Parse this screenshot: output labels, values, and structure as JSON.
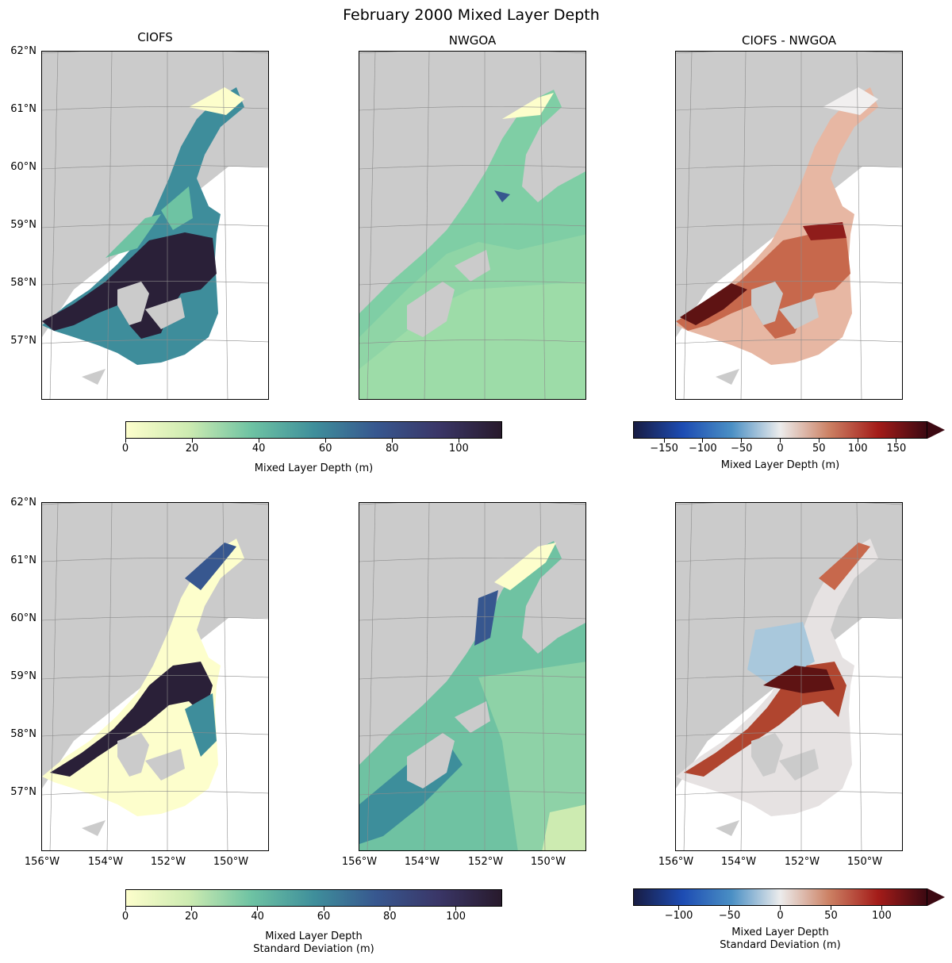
{
  "figure": {
    "title": "February 2000 Mixed Layer Depth",
    "columns": [
      "CIOFS",
      "NWGOA",
      "CIOFS - NWGOA"
    ]
  },
  "axes": {
    "lat_labels": [
      "62°N",
      "61°N",
      "60°N",
      "59°N",
      "58°N",
      "57°N"
    ],
    "lon_labels": [
      "156°W",
      "154°W",
      "152°W",
      "150°W"
    ]
  },
  "colorbars": {
    "top_seq": {
      "label": "Mixed Layer Depth (m)",
      "ticks": [
        "0",
        "20",
        "40",
        "60",
        "80",
        "100"
      ],
      "range": [
        0,
        113
      ],
      "colormap": "deep",
      "colors": [
        "#fdfecc",
        "#cdebb1",
        "#6ec3a3",
        "#3f8f9b",
        "#37578f",
        "#3a3667",
        "#281a2c"
      ]
    },
    "top_div": {
      "label": "Mixed Layer Depth (m)",
      "ticks": [
        "−150",
        "−100",
        "−50",
        "0",
        "50",
        "100",
        "150"
      ],
      "range": [
        -190,
        190
      ],
      "extend": "max",
      "colormap": "balance",
      "colors": [
        "#181c43",
        "#1d4cb3",
        "#4a8fc4",
        "#ececec",
        "#cc8164",
        "#a41c19",
        "#3c0912"
      ]
    },
    "bottom_seq": {
      "label_line1": "Mixed Layer Depth",
      "label_line2": "Standard Deviation (m)",
      "ticks": [
        "0",
        "20",
        "40",
        "60",
        "80",
        "100"
      ],
      "range": [
        0,
        114
      ],
      "colormap": "deep",
      "colors": [
        "#fdfecc",
        "#cdebb1",
        "#6ec3a3",
        "#3f8f9b",
        "#37578f",
        "#3a3667",
        "#281a2c"
      ]
    },
    "bottom_div": {
      "label_line1": "Mixed Layer Depth",
      "label_line2": "Standard Deviation (m)",
      "ticks": [
        "−100",
        "−50",
        "0",
        "50",
        "100"
      ],
      "range": [
        -145,
        145
      ],
      "extend": "max",
      "colormap": "balance",
      "colors": [
        "#181c43",
        "#1d4cb3",
        "#4a8fc4",
        "#ececec",
        "#cc8164",
        "#a41c19",
        "#3c0912"
      ]
    }
  },
  "map_colors": {
    "land": "#cbcbcb",
    "ocean_blank": "#ffffff",
    "grid": "#8c8c8c"
  }
}
